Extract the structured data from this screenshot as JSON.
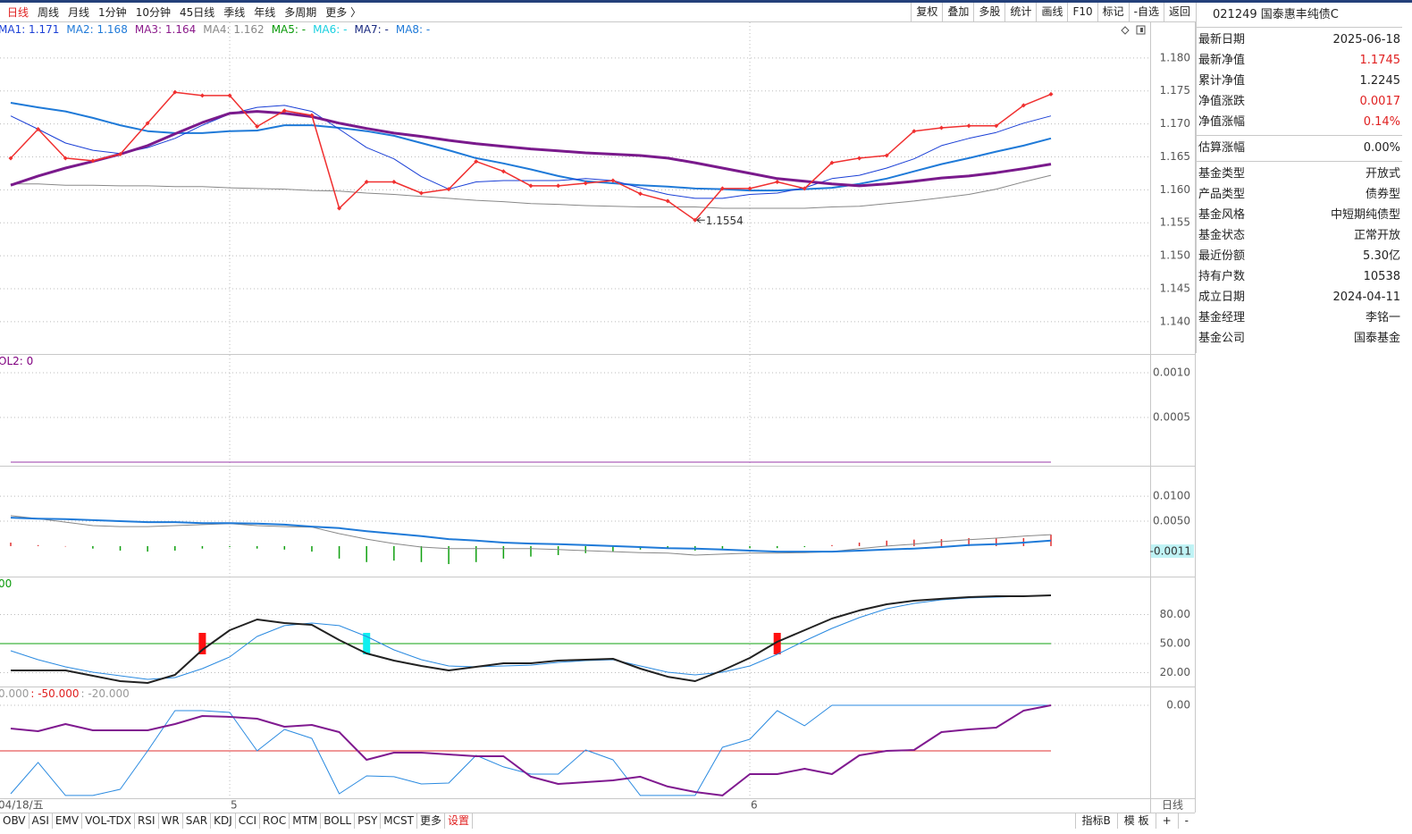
{
  "toolbar": {
    "periods": [
      "日线",
      "周线",
      "月线",
      "1分钟",
      "10分钟",
      "45日线",
      "季线",
      "年线",
      "多周期",
      "更多 〉"
    ],
    "tools": [
      "复权",
      "叠加",
      "多股",
      "统计",
      "画线",
      "F10",
      "标记",
      "-自选",
      "返回"
    ]
  },
  "bottom_bar": {
    "tabs": [
      "OBV",
      "ASI",
      "EMV",
      "VOL-TDX",
      "RSI",
      "WR",
      "SAR",
      "KDJ",
      "CCI",
      "ROC",
      "MTM",
      "BOLL",
      "PSY",
      "MCST",
      "更多",
      "设置"
    ],
    "tools": [
      "指标B",
      "模 板",
      "+",
      "-"
    ],
    "period_label": "日线"
  },
  "info_panel": {
    "title": "021249 国泰惠丰纯债C",
    "groups": [
      [
        {
          "label": "最新日期",
          "value": "2025-06-18"
        },
        {
          "label": "最新净值",
          "value": "1.1745",
          "color": "#e02020"
        },
        {
          "label": "累计净值",
          "value": "1.2245"
        },
        {
          "label": "净值涨跌",
          "value": "0.0017",
          "color": "#e02020"
        },
        {
          "label": "净值涨幅",
          "value": "0.14%",
          "color": "#e02020"
        }
      ],
      [
        {
          "label": "估算涨幅",
          "value": "0.00%"
        }
      ],
      [
        {
          "label": "基金类型",
          "value": "开放式"
        },
        {
          "label": "产品类型",
          "value": "债券型"
        },
        {
          "label": "基金风格",
          "value": "中短期纯债型"
        },
        {
          "label": "基金状态",
          "value": "正常开放"
        },
        {
          "label": "最近份额",
          "value": "5.30亿"
        },
        {
          "label": "持有户数",
          "value": "10538"
        },
        {
          "label": "成立日期",
          "value": "2024-04-11"
        },
        {
          "label": "基金经理",
          "value": "李铭一"
        },
        {
          "label": "基金公司",
          "value": "国泰基金"
        }
      ]
    ]
  },
  "chart_data": [
    {
      "type": "line",
      "grid": true,
      "ylim": [
        1.1351,
        1.1854
      ],
      "yticks": [
        {
          "value": 1.18,
          "label": "1.180"
        },
        {
          "value": 1.175,
          "label": "1.175"
        },
        {
          "value": 1.17,
          "label": "1.170"
        },
        {
          "value": 1.165,
          "label": "1.165"
        },
        {
          "value": 1.16,
          "label": "1.160"
        },
        {
          "value": 1.155,
          "label": "1.155"
        },
        {
          "value": 1.15,
          "label": "1.150"
        },
        {
          "value": 1.145,
          "label": "1.145"
        },
        {
          "value": 1.14,
          "label": "1.140"
        }
      ],
      "legend": [
        {
          "text": "MA1: 1.171",
          "color": "#1a3fd6"
        },
        {
          "text": "MA2: 1.168",
          "color": "#1f7ad8"
        },
        {
          "text": "MA3: 1.164",
          "color": "#8b1a8b"
        },
        {
          "text": "MA4: 1.162",
          "color": "#888888"
        },
        {
          "text": "MA5: -",
          "color": "#0a9a0a"
        },
        {
          "text": "MA6: -",
          "color": "#1ad0e0"
        },
        {
          "text": "MA7: -",
          "color": "#1a2a80"
        },
        {
          "text": "MA8: -",
          "color": "#1f7ad8"
        }
      ],
      "series": [
        {
          "color": "#888888",
          "width": 1,
          "values": [
            1.1609,
            1.1609,
            1.1607,
            1.1607,
            1.1606,
            1.1606,
            1.1605,
            1.1605,
            1.1603,
            1.1602,
            1.1601,
            1.1599,
            1.1598,
            1.1595,
            1.1593,
            1.159,
            1.1587,
            1.1584,
            1.1582,
            1.1579,
            1.1578,
            1.1576,
            1.1575,
            1.1574,
            1.1574,
            1.1574,
            1.1572,
            1.1572,
            1.1572,
            1.1572,
            1.1574,
            1.1575,
            1.1579,
            1.1583,
            1.1588,
            1.1593,
            1.1601,
            1.1612,
            1.1622
          ]
        },
        {
          "color": "#1f7ad8",
          "width": 2,
          "values": [
            1.1732,
            1.1725,
            1.1719,
            1.1709,
            1.1698,
            1.1689,
            1.1686,
            1.1686,
            1.1689,
            1.169,
            1.1698,
            1.1698,
            1.1694,
            1.1689,
            1.1682,
            1.1671,
            1.166,
            1.1648,
            1.164,
            1.1631,
            1.1621,
            1.1613,
            1.161,
            1.1607,
            1.1605,
            1.1602,
            1.1601,
            1.1599,
            1.1599,
            1.1601,
            1.1603,
            1.1609,
            1.1617,
            1.1628,
            1.1639,
            1.1648,
            1.1658,
            1.1667,
            1.1678
          ]
        },
        {
          "color": "#1a3fd6",
          "width": 1,
          "values": [
            1.1712,
            1.1692,
            1.1671,
            1.166,
            1.1655,
            1.1664,
            1.1678,
            1.1698,
            1.1715,
            1.1725,
            1.1728,
            1.1719,
            1.1692,
            1.1664,
            1.1647,
            1.162,
            1.1601,
            1.1612,
            1.1614,
            1.1614,
            1.1614,
            1.1617,
            1.1614,
            1.1603,
            1.1593,
            1.1587,
            1.1587,
            1.1593,
            1.1595,
            1.1603,
            1.1617,
            1.1622,
            1.1633,
            1.1647,
            1.1667,
            1.1678,
            1.1687,
            1.1701,
            1.1712
          ]
        },
        {
          "color": "#7a1a8c",
          "width": 3,
          "values": [
            1.1607,
            1.1621,
            1.1633,
            1.1643,
            1.1654,
            1.1667,
            1.1685,
            1.1702,
            1.1716,
            1.1719,
            1.1716,
            1.1711,
            1.1701,
            1.1693,
            1.1686,
            1.1681,
            1.1675,
            1.167,
            1.1666,
            1.1662,
            1.1659,
            1.1656,
            1.1654,
            1.1652,
            1.1648,
            1.1641,
            1.1633,
            1.1625,
            1.1617,
            1.1613,
            1.1609,
            1.1606,
            1.1609,
            1.1613,
            1.1618,
            1.1621,
            1.1626,
            1.1632,
            1.1639
          ]
        },
        {
          "color": "#f03030",
          "width": 1.5,
          "markers": true,
          "values": [
            1.1648,
            1.1692,
            1.1648,
            1.1644,
            1.1654,
            1.1701,
            1.1748,
            1.1743,
            1.1743,
            1.1696,
            1.172,
            1.1713,
            1.1572,
            1.1612,
            1.1612,
            1.1595,
            1.1601,
            1.1643,
            1.1628,
            1.1606,
            1.1606,
            1.161,
            1.1614,
            1.1594,
            1.1583,
            1.1554,
            1.1602,
            1.1602,
            1.1612,
            1.1602,
            1.1641,
            1.1648,
            1.1652,
            1.1689,
            1.1694,
            1.1697,
            1.1697,
            1.1728,
            1.1745
          ]
        }
      ],
      "annotation": {
        "index": 25,
        "value": 1.1554,
        "label": "1.1554"
      }
    },
    {
      "type": "line",
      "grid": true,
      "ylim": [
        -4e-05,
        0.00121
      ],
      "yticks": [
        {
          "value": 0.001,
          "label": "0.0010"
        },
        {
          "value": 0.0005,
          "label": "0.0005"
        }
      ],
      "legend": [
        {
          "text": "OL2: 0",
          "color": "#800080"
        }
      ],
      "series": [
        {
          "color": "#9a3aaa",
          "width": 1,
          "values": [
            0,
            0,
            0,
            0,
            0,
            0,
            0,
            0,
            0,
            0,
            0,
            0,
            0,
            0,
            0,
            0,
            0,
            0,
            0,
            0,
            0,
            0,
            0,
            0,
            0,
            0,
            0,
            0,
            0,
            0,
            0,
            0,
            0,
            0,
            0,
            0,
            0,
            0,
            0
          ]
        }
      ]
    },
    {
      "type": "line",
      "grid": true,
      "ylim": [
        -0.0061,
        0.0161
      ],
      "yticks": [
        {
          "value": 0.01,
          "label": "0.0100"
        },
        {
          "value": 0.005,
          "label": "0.0050"
        }
      ],
      "value_box": {
        "value": -0.0011,
        "label": "-0.0011"
      },
      "bars": {
        "up_color": "#e03030",
        "down_color": "#10a010",
        "values": [
          0.0007,
          0.0002,
          0,
          -0.0005,
          -0.0009,
          -0.0011,
          -0.0009,
          -0.0005,
          -0.0002,
          -0.0005,
          -0.0007,
          -0.0011,
          -0.0025,
          -0.0032,
          -0.0029,
          -0.0032,
          -0.0036,
          -0.0032,
          -0.0025,
          -0.0021,
          -0.0018,
          -0.0014,
          -0.0011,
          -0.0007,
          -0.0005,
          -0.0009,
          -0.0005,
          -0.0004,
          -0.0004,
          -0.0002,
          0.0002,
          0.0007,
          0.0011,
          0.0013,
          0.0014,
          0.0016,
          0.0016,
          0.0016,
          0.0023
        ]
      },
      "series": [
        {
          "color": "#888888",
          "width": 1,
          "values": [
            0.0061,
            0.0055,
            0.0048,
            0.0041,
            0.0039,
            0.0039,
            0.0041,
            0.0043,
            0.0045,
            0.0041,
            0.0039,
            0.0038,
            0.0025,
            0.0014,
            0.0005,
            -0.0002,
            -0.0005,
            -0.0005,
            -0.0005,
            -0.0005,
            -0.0007,
            -0.0009,
            -0.0011,
            -0.0013,
            -0.0014,
            -0.0018,
            -0.0016,
            -0.0014,
            -0.0014,
            -0.0013,
            -0.0011,
            -0.0005,
            0,
            0.0004,
            0.0009,
            0.0013,
            0.0016,
            0.002,
            0.0023
          ]
        },
        {
          "color": "#1f7ad8",
          "width": 2,
          "values": [
            0.0057,
            0.0055,
            0.0054,
            0.0052,
            0.005,
            0.0048,
            0.0048,
            0.0046,
            0.0046,
            0.0045,
            0.0043,
            0.0039,
            0.0036,
            0.003,
            0.0025,
            0.002,
            0.0014,
            0.0011,
            0.0007,
            0.0005,
            0.0004,
            0.0002,
            0,
            -0.0002,
            -0.0004,
            -0.0005,
            -0.0007,
            -0.0009,
            -0.0011,
            -0.0011,
            -0.0011,
            -0.0009,
            -0.0007,
            -0.0005,
            -0.0002,
            0.0002,
            0.0004,
            0.0007,
            0.0011
          ]
        }
      ]
    },
    {
      "type": "line",
      "grid": true,
      "ylim": [
        5.7,
        119.2
      ],
      "yticks": [
        {
          "value": 80,
          "label": "80.00"
        },
        {
          "value": 50,
          "label": "50.00"
        },
        {
          "value": 20,
          "label": "20.00"
        }
      ],
      "legend": [
        {
          "text": "00",
          "color": "#0a9a0a"
        }
      ],
      "hline": {
        "value": 50,
        "color": "#10a010"
      },
      "signals": [
        {
          "index": 7,
          "color": "#ff1010"
        },
        {
          "index": 13,
          "color": "#10f0f0"
        },
        {
          "index": 28,
          "color": "#ff1010"
        }
      ],
      "series": [
        {
          "color": "#2a8ae0",
          "width": 1,
          "values": [
            42.6,
            33.4,
            26,
            20.5,
            16.8,
            13.1,
            14.9,
            24.2,
            36.2,
            57.4,
            68.5,
            71.2,
            68.5,
            57.4,
            43.5,
            33.4,
            26.9,
            26,
            26.9,
            27.8,
            30.6,
            32.5,
            33.4,
            26.9,
            20.5,
            17.7,
            20.5,
            26.9,
            38.9,
            52.8,
            65.7,
            76.8,
            86,
            91.5,
            95.2,
            97.1,
            98,
            98.9,
            99.8
          ]
        },
        {
          "color": "#222222",
          "width": 2,
          "values": [
            22.3,
            22.3,
            22.3,
            16.8,
            11.2,
            9.4,
            17.7,
            43.5,
            63.8,
            74.9,
            71.2,
            69.4,
            53.7,
            39.8,
            32.5,
            26.9,
            22.3,
            26,
            29.7,
            29.7,
            32.5,
            33.4,
            34.3,
            24.2,
            15.8,
            11.2,
            22.3,
            35.2,
            51.8,
            63.8,
            75.8,
            84.2,
            90.6,
            94.3,
            96.2,
            98,
            98.9,
            98.9,
            99.8
          ]
        }
      ]
    },
    {
      "type": "line",
      "grid": true,
      "ylim": [
        -102,
        20.6
      ],
      "yticks": [
        {
          "value": 0,
          "label": "0.00"
        }
      ],
      "legend": [
        {
          "text": "0.000",
          "color": "#999999"
        },
        {
          "text": ": -50.000",
          "color": "#e02020"
        },
        {
          "text": ": -20.000",
          "color": "#999999"
        }
      ],
      "hline": {
        "value": -50,
        "color": "#e03030"
      },
      "categories": [
        "04/18/五",
        null,
        null,
        null,
        null,
        null,
        null,
        null,
        "5",
        null,
        null,
        null,
        null,
        null,
        null,
        null,
        null,
        null,
        null,
        null,
        null,
        null,
        null,
        null,
        null,
        null,
        null,
        "6",
        null,
        null,
        null,
        null,
        null,
        null,
        null,
        null,
        null,
        null,
        null
      ],
      "series": [
        {
          "color": "#2a8ae0",
          "width": 1,
          "values": [
            -97.1,
            -62.7,
            -99,
            -99,
            -92.2,
            -50,
            -5.9,
            -5.9,
            -7.8,
            -50,
            -26.5,
            -36.3,
            -97.1,
            -77.5,
            -78.4,
            -86.3,
            -85.3,
            -54.9,
            -67.6,
            -75.5,
            -75.5,
            -49,
            -59.8,
            -99,
            -99,
            -99,
            -46.1,
            -37.3,
            -5.9,
            -22.5,
            0,
            0,
            0,
            0,
            0,
            0,
            0,
            0,
            0
          ]
        },
        {
          "color": "#801a90",
          "width": 2,
          "values": [
            -25.5,
            -28.4,
            -20.6,
            -27.5,
            -27.5,
            -27.5,
            -20.6,
            -11.8,
            -12.7,
            -14.7,
            -23.5,
            -21.6,
            -29.4,
            -59.8,
            -52,
            -52,
            -53.9,
            -55.9,
            -55.9,
            -78.4,
            -86.3,
            -84.3,
            -82.4,
            -78.4,
            -89.2,
            -95.1,
            -99,
            -75.5,
            -75.5,
            -69.6,
            -75.5,
            -54.9,
            -50,
            -49,
            -29.4,
            -26.5,
            -24.5,
            -5.9,
            0
          ]
        }
      ]
    }
  ]
}
